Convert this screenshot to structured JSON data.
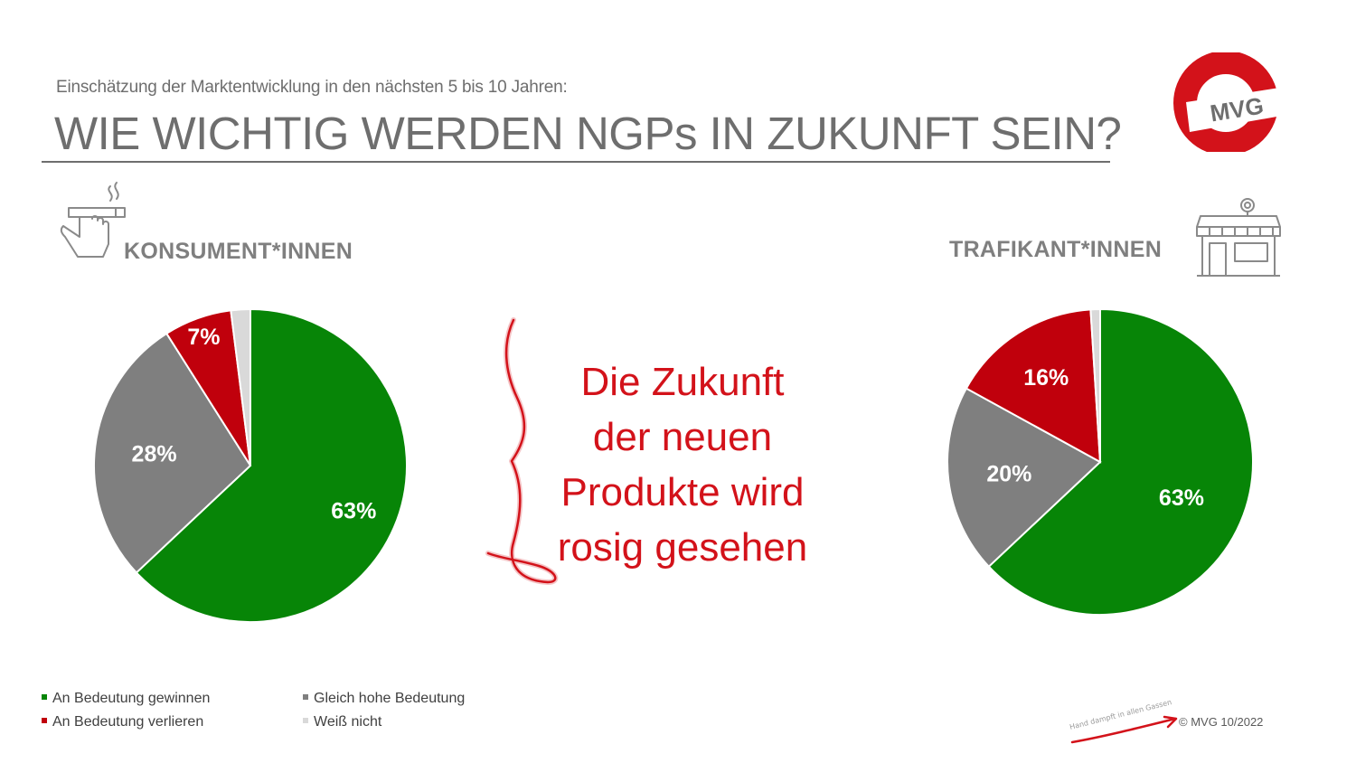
{
  "header": {
    "subtitle": "Einschätzung der Marktentwicklung in den nächsten 5 bis 10 Jahren:",
    "title": "WIE WICHTIG WERDEN NGPs IN ZUKUNFT SEIN?"
  },
  "logo": {
    "text": "MVG"
  },
  "colors": {
    "gain": "#078507",
    "same": "#7f7f7f",
    "lose": "#c0000c",
    "unknown": "#d9d9d9",
    "accent": "#d3121a"
  },
  "chart_data": [
    {
      "type": "pie",
      "title": "KONSUMENT*INNEN",
      "categories": [
        "An Bedeutung gewinnen",
        "Gleich hohe Bedeutung",
        "An Bedeutung verlieren",
        "Weiß nicht"
      ],
      "values": [
        63,
        28,
        7,
        2
      ],
      "data_labels": [
        "63%",
        "28%",
        "7%",
        ""
      ]
    },
    {
      "type": "pie",
      "title": "TRAFIKANT*INNEN",
      "categories": [
        "An Bedeutung gewinnen",
        "Gleich hohe Bedeutung",
        "An Bedeutung verlieren",
        "Weiß nicht"
      ],
      "values": [
        63,
        20,
        16,
        1
      ],
      "data_labels": [
        "63%",
        "20%",
        "16%",
        ""
      ]
    }
  ],
  "callout": {
    "lines": [
      "Die Zukunft",
      "der neuen",
      "Produkte wird",
      "rosig gesehen"
    ]
  },
  "legend": {
    "items": [
      {
        "label": "An Bedeutung gewinnen",
        "color": "#078507"
      },
      {
        "label": "Gleich hohe Bedeutung",
        "color": "#7f7f7f"
      },
      {
        "label": "An Bedeutung verlieren",
        "color": "#c0000c"
      },
      {
        "label": "Weiß nicht",
        "color": "#d9d9d9"
      }
    ]
  },
  "footer": {
    "handwriting": "Hand dampft in allen Gassen",
    "credit": "© MVG 10/2022"
  },
  "icons": [
    "cigarette-hand-icon",
    "shop-icon"
  ]
}
